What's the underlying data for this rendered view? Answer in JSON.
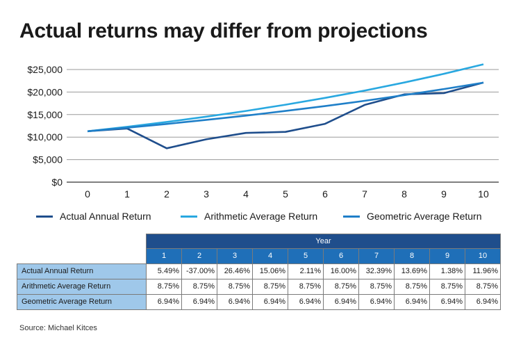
{
  "title": "Actual returns may differ from projections",
  "chart_data": {
    "type": "line",
    "title": "Actual returns may differ from projections",
    "x": [
      0,
      1,
      2,
      3,
      4,
      5,
      6,
      7,
      8,
      9,
      10
    ],
    "x_ticks": [
      "0",
      "1",
      "2",
      "3",
      "4",
      "5",
      "6",
      "7",
      "8",
      "9",
      "10"
    ],
    "y_ticks": [
      "$0",
      "$5,000",
      "$10,000",
      "$15,000",
      "$20,000",
      "$25,000"
    ],
    "ylim": [
      0,
      25000
    ],
    "grid": true,
    "legend_position": "bottom",
    "series": [
      {
        "name": "Actual Annual Return",
        "color": "#1f4e8c",
        "values": [
          11300,
          11920,
          7510,
          9500,
          10930,
          11160,
          12950,
          17140,
          19490,
          19760,
          22120
        ]
      },
      {
        "name": "Arithmetic Average Return",
        "color": "#29a8e0",
        "values": [
          11300,
          12290,
          13370,
          14540,
          15810,
          17190,
          18700,
          20330,
          22110,
          24050,
          26150
        ]
      },
      {
        "name": "Geometric Average Return",
        "color": "#1f7fc8",
        "values": [
          11300,
          12080,
          12920,
          13820,
          14770,
          15800,
          16890,
          18060,
          19320,
          20660,
          22090
        ]
      }
    ]
  },
  "table": {
    "year_header": "Year",
    "columns": [
      "1",
      "2",
      "3",
      "4",
      "5",
      "6",
      "7",
      "8",
      "9",
      "10"
    ],
    "rows": [
      {
        "label": "Actual Annual Return",
        "values": [
          "5.49%",
          "-37.00%",
          "26.46%",
          "15.06%",
          "2.11%",
          "16.00%",
          "32.39%",
          "13.69%",
          "1.38%",
          "11.96%"
        ]
      },
      {
        "label": "Arithmetic Average Return",
        "values": [
          "8.75%",
          "8.75%",
          "8.75%",
          "8.75%",
          "8.75%",
          "8.75%",
          "8.75%",
          "8.75%",
          "8.75%",
          "8.75%"
        ]
      },
      {
        "label": "Geometric Average Return",
        "values": [
          "6.94%",
          "6.94%",
          "6.94%",
          "6.94%",
          "6.94%",
          "6.94%",
          "6.94%",
          "6.94%",
          "6.94%",
          "6.94%"
        ]
      }
    ]
  },
  "source": "Source: Michael Kitces"
}
